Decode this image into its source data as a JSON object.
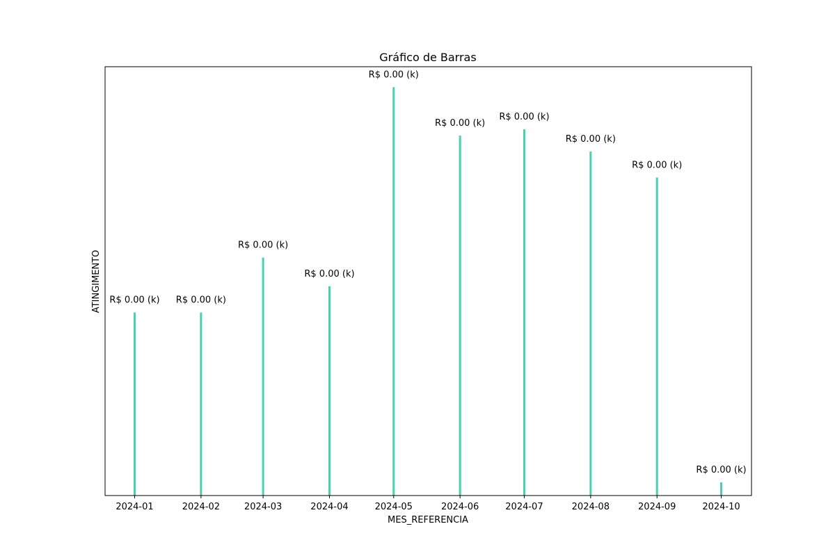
{
  "chart_data": {
    "type": "bar",
    "title": "Gráfico de Barras",
    "xlabel": "MES_REFERENCIA",
    "ylabel": "ATINGIMENTO",
    "x": [
      "2024-01-01",
      "2024-02-01",
      "2024-03-01",
      "2024-04-01",
      "2024-05-01",
      "2024-06-01",
      "2024-07-01",
      "2024-08-01",
      "2024-09-01",
      "2024-10-01"
    ],
    "categories": [
      "2024-01",
      "2024-02",
      "2024-03",
      "2024-04",
      "2024-05",
      "2024-06",
      "2024-07",
      "2024-08",
      "2024-09",
      "2024-10"
    ],
    "values": [
      0.4482,
      0.4482,
      0.5828,
      0.5126,
      1.0,
      0.8814,
      0.8967,
      0.8425,
      0.7787,
      0.0325
    ],
    "data_labels": [
      "R$ 0.00 (k)",
      "R$ 0.00 (k)",
      "R$ 0.00 (k)",
      "R$ 0.00 (k)",
      "R$ 0.00 (k)",
      "R$ 0.00 (k)",
      "R$ 0.00 (k)",
      "R$ 0.00 (k)",
      "R$ 0.00 (k)",
      "R$ 0.00 (k)"
    ],
    "ylim": [
      0,
      1.05
    ],
    "bar_color": "#48d1b0",
    "grid": false,
    "y_ticks_visible": false
  }
}
